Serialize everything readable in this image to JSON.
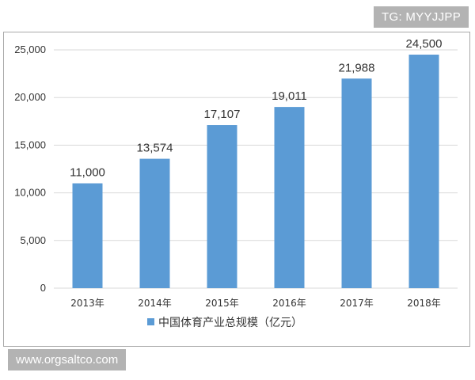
{
  "watermarks": {
    "tag": "TG: MYYJJPP",
    "url": "www.orgsaltco.com"
  },
  "chart_data": {
    "type": "bar",
    "categories": [
      "2013年",
      "2014年",
      "2015年",
      "2016年",
      "2017年",
      "2018年"
    ],
    "series": [
      {
        "name": "中国体育产业总规模（亿元）",
        "values": [
          11000,
          13574,
          17107,
          19011,
          21988,
          24500
        ],
        "labels": [
          "11,000",
          "13,574",
          "17,107",
          "19,011",
          "21,988",
          "24,500"
        ],
        "color": "#5b9bd5"
      }
    ],
    "title": "",
    "xlabel": "",
    "ylabel": "",
    "ylim": [
      0,
      25000
    ],
    "yticks": [
      0,
      5000,
      10000,
      15000,
      20000,
      25000
    ],
    "ytick_labels": [
      "0",
      "5,000",
      "10,000",
      "15,000",
      "20,000",
      "25,000"
    ],
    "grid": true,
    "grid_color": "#d9d9d9",
    "legend_position": "bottom"
  }
}
